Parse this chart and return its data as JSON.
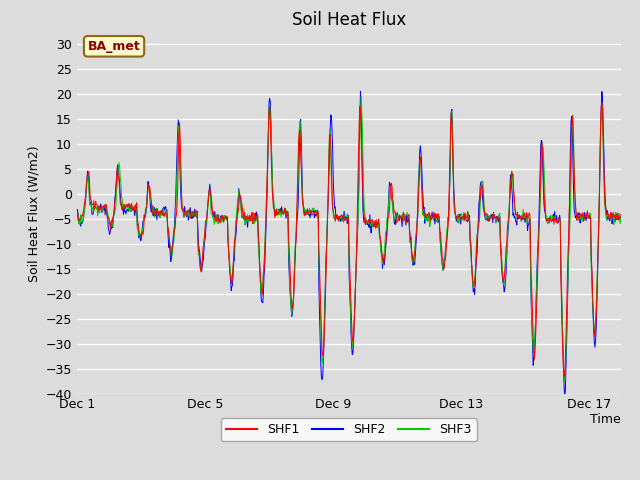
{
  "title": "Soil Heat Flux",
  "ylabel": "Soil Heat Flux (W/m2)",
  "xlabel": "Time",
  "annotation_text": "BA_met",
  "annotation_color": "#8B0000",
  "annotation_bg": "#FFFACD",
  "annotation_border": "#8B6914",
  "ylim": [
    -40,
    32
  ],
  "yticks": [
    -40,
    -35,
    -30,
    -25,
    -20,
    -15,
    -10,
    -5,
    0,
    5,
    10,
    15,
    20,
    25,
    30
  ],
  "xtick_labels": [
    "Dec 1",
    "Dec 5",
    "Dec 9",
    "Dec 13",
    "Dec 17"
  ],
  "xtick_positions": [
    0,
    4,
    8,
    12,
    16
  ],
  "legend_labels": [
    "SHF1",
    "SHF2",
    "SHF3"
  ],
  "legend_colors": [
    "#FF0000",
    "#0000FF",
    "#00CC00"
  ],
  "bg_color": "#DCDCDC",
  "plot_bg_color": "#DCDCDC",
  "grid_color": "#FFFFFF",
  "title_fontsize": 12,
  "axis_label_fontsize": 9,
  "tick_fontsize": 9,
  "n_days": 18,
  "points_per_day": 48,
  "figsize": [
    6.4,
    4.8
  ],
  "dpi": 100
}
